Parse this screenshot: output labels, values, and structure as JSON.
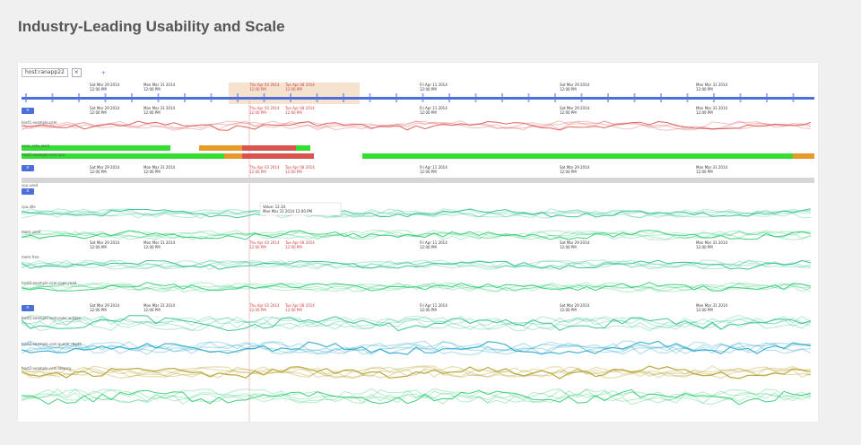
{
  "page": {
    "title": "Industry-Leading Usability and Scale"
  },
  "viewer": {
    "search_value": "host:ranapp22",
    "ticks": [
      {
        "d": "Sat Mar 29 2014",
        "t": "12:00 PM"
      },
      {
        "d": "Mon Mar 31 2014",
        "t": "12:00 PM"
      },
      {
        "d": "Thu Apr 03 2014",
        "t": "12:00 PM"
      },
      {
        "d": "Tue Apr 08 2014",
        "t": "12:00 PM"
      },
      {
        "d": "Fri Apr 11 2014",
        "t": "12:00 PM"
      }
    ],
    "rows": [
      {
        "label": "host1.example.com"
      },
      {
        "label": "error_rate_alert"
      },
      {
        "label": "host1.example.com:cpu"
      },
      {
        "label": "cpu.used"
      },
      {
        "label": "cpu.idle"
      },
      {
        "label": "mem.used"
      },
      {
        "label": "mem.free"
      },
      {
        "label": "host2.example.com:rows_read"
      },
      {
        "label": "host2.example.com:rows_written"
      },
      {
        "label": "host2.example.com:queue_depth"
      },
      {
        "label": "host2.example.com:latency"
      }
    ],
    "section_buttons": [
      "≡",
      "≡",
      "≡",
      "≡"
    ],
    "tooltip": {
      "l1": "Value: 12.34",
      "l2": "Mon Mar 31 2014 12:00 PM"
    },
    "colors": {
      "accent": "#4c6fd8",
      "alert": "#d9534f",
      "ok": "#33dd33",
      "warn": "#e69a2a",
      "teal": "#2bbf8a",
      "green": "#2ecc71",
      "cyan": "#30aacc",
      "olive": "#b5a02a",
      "highlight": "#f5e3cf"
    }
  }
}
